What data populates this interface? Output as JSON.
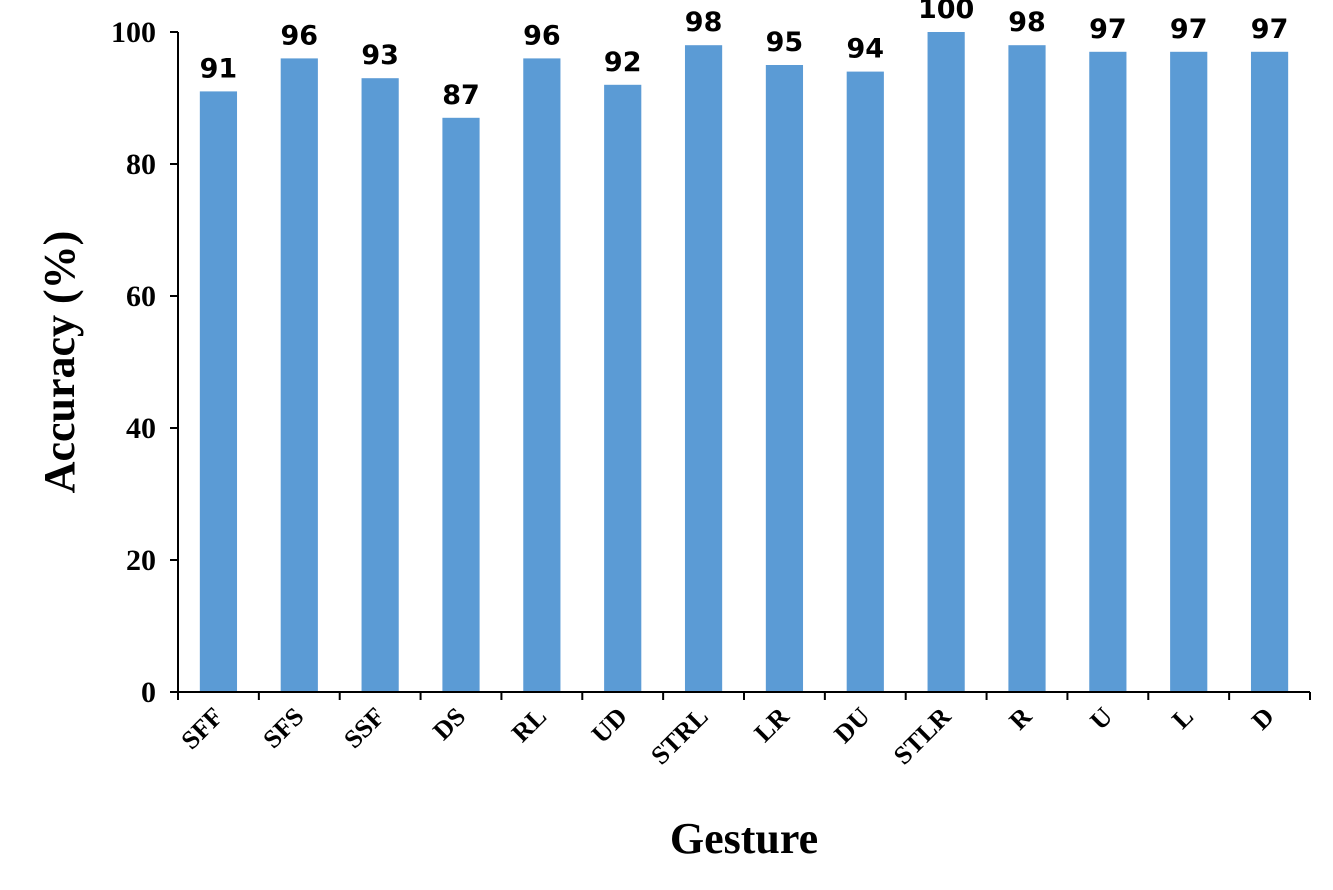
{
  "chart_data": {
    "type": "bar",
    "categories": [
      "SFF",
      "SFS",
      "SSF",
      "DS",
      "RL",
      "UD",
      "STRL",
      "LR",
      "DU",
      "STLR",
      "R",
      "U",
      "L",
      "D"
    ],
    "values": [
      91,
      96,
      93,
      87,
      96,
      92,
      98,
      95,
      94,
      100,
      98,
      97,
      97,
      97
    ],
    "data_labels": [
      "91",
      "96",
      "93",
      "87",
      "96",
      "92",
      "98",
      "95",
      "94",
      "100",
      "98",
      "97",
      "97",
      "97"
    ],
    "title": "",
    "xlabel": "Gesture",
    "ylabel": "Accuracy (%)",
    "ylim": [
      0,
      100
    ],
    "yticks": [
      "0",
      "20",
      "40",
      "60",
      "80",
      "100"
    ],
    "grid": false,
    "legend": "none",
    "bar_color": "#5b9bd5"
  }
}
